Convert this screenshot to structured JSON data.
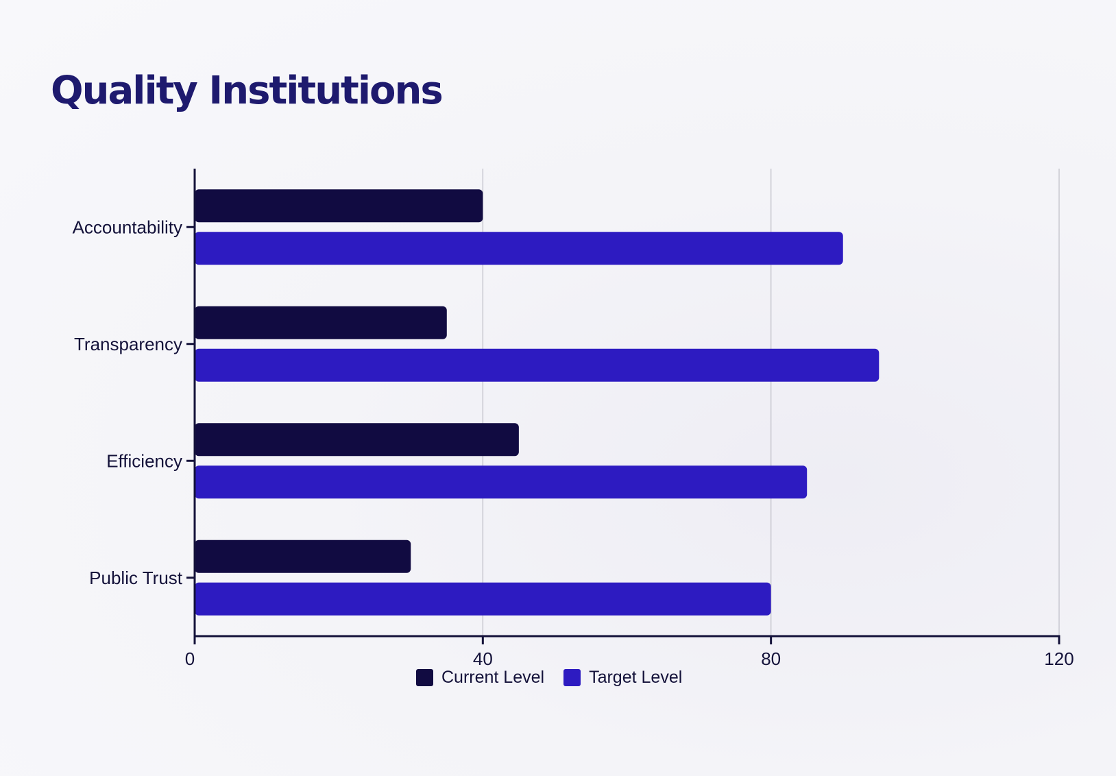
{
  "colors": {
    "title": "#1e1a6e",
    "current": "#110b41",
    "target": "#2d1bc1",
    "axis": "#14123a",
    "grid": "#c8c8d0"
  },
  "chart_data": {
    "type": "bar",
    "orientation": "horizontal",
    "title": "Quality Institutions",
    "xlabel": "",
    "ylabel": "",
    "categories": [
      "Accountability",
      "Transparency",
      "Efficiency",
      "Public Trust"
    ],
    "series": [
      {
        "name": "Current Level",
        "values": [
          40,
          35,
          45,
          30
        ]
      },
      {
        "name": "Target Level",
        "values": [
          90,
          95,
          85,
          80
        ]
      }
    ],
    "xlim": [
      0,
      120
    ],
    "x_ticks": [
      "0",
      "40",
      "80",
      "120"
    ],
    "grid": "vertical",
    "legend": "bottom-center"
  }
}
